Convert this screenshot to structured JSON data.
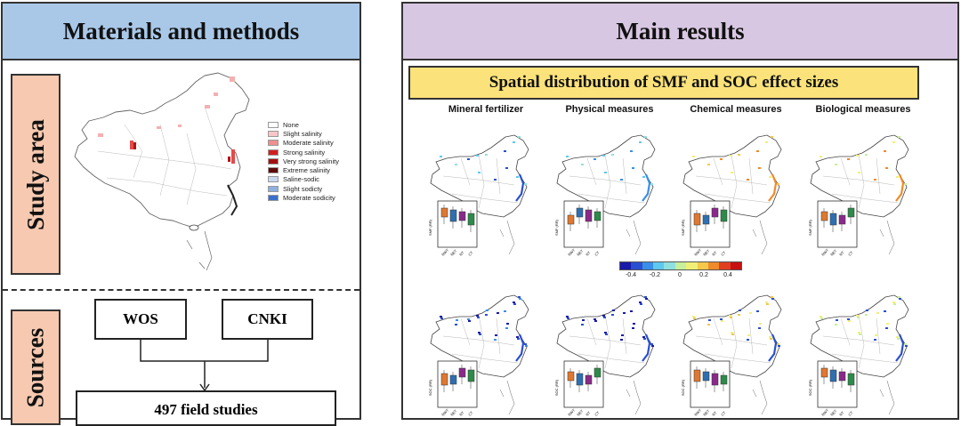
{
  "left": {
    "header": "Materials and methods",
    "study_area_label": "Study area",
    "sources_label": "Sources",
    "legend": [
      {
        "label": "None",
        "color": "#ffffff"
      },
      {
        "label": "Slight salinity",
        "color": "#f7c6c6"
      },
      {
        "label": "Moderate salinity",
        "color": "#ef8f8f"
      },
      {
        "label": "Strong salinity",
        "color": "#d11f1f"
      },
      {
        "label": "Very strong salinity",
        "color": "#a30f0f"
      },
      {
        "label": "Extreme salinity",
        "color": "#5e0a0a"
      },
      {
        "label": "Saline-sodic",
        "color": "#c8d8ee"
      },
      {
        "label": "Slight sodicty",
        "color": "#8fb0e0"
      },
      {
        "label": "Moderate sodicity",
        "color": "#3a6fcf"
      }
    ],
    "wos": "WOS",
    "cnki": "CNKI",
    "studies": "497 field studies"
  },
  "right": {
    "header": "Main results",
    "subtitle": "Spatial distribution of SMF and SOC effect sizes",
    "columns": [
      "Mineral fertilizer",
      "Physical measures",
      "Chemical measures",
      "Biological measures"
    ],
    "colorbar": {
      "ticks": [
        "-0.4",
        "-0.2",
        "0",
        "0.2",
        "0.4"
      ],
      "colors": [
        "#1a1aa8",
        "#2a4fd0",
        "#3a8ee8",
        "#5ec8f0",
        "#8fe0e0",
        "#c8ef9a",
        "#f0f078",
        "#f5c84a",
        "#f08a2a",
        "#e04020",
        "#c81010"
      ]
    },
    "inset_ylabels": [
      "SMF (RR)",
      "SOC (RR)"
    ],
    "inset_xlabels": [
      "NWT",
      "NET",
      "NT",
      "CT"
    ],
    "inset_colors": [
      "#e07830",
      "#2f6fb0",
      "#8a2a8a",
      "#2e8a4a"
    ]
  }
}
